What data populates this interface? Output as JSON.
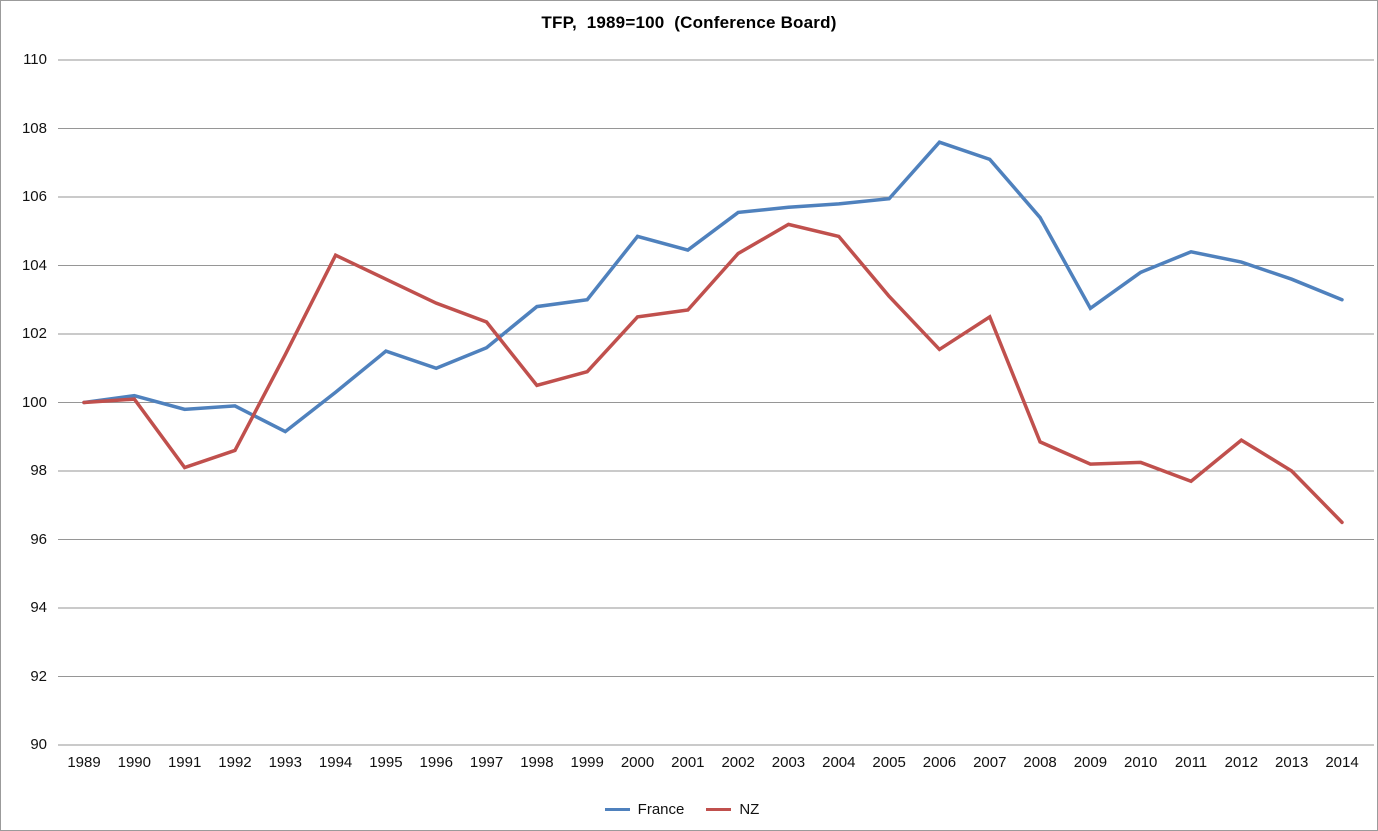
{
  "chart_data": {
    "type": "line",
    "title": "TFP,  1989=100  (Conference Board)",
    "xlabel": "",
    "ylabel": "",
    "ylim": [
      90,
      110
    ],
    "yticks": [
      90,
      92,
      94,
      96,
      98,
      100,
      102,
      104,
      106,
      108,
      110
    ],
    "grid": "horizontal",
    "gridline_color": "#969696",
    "legend_position": "bottom",
    "categories": [
      "1989",
      "1990",
      "1991",
      "1992",
      "1993",
      "1994",
      "1995",
      "1996",
      "1997",
      "1998",
      "1999",
      "2000",
      "2001",
      "2002",
      "2003",
      "2004",
      "2005",
      "2006",
      "2007",
      "2008",
      "2009",
      "2010",
      "2011",
      "2012",
      "2013",
      "2014"
    ],
    "series": [
      {
        "name": "France",
        "color": "#4F81BD",
        "values": [
          100.0,
          100.2,
          99.8,
          99.9,
          99.15,
          100.3,
          101.5,
          101.0,
          101.6,
          102.8,
          103.0,
          104.85,
          104.45,
          105.55,
          105.7,
          105.8,
          105.95,
          107.6,
          107.1,
          105.4,
          102.75,
          103.8,
          104.4,
          104.1,
          103.6,
          103.0
        ]
      },
      {
        "name": "NZ",
        "color": "#C0504D",
        "values": [
          100.0,
          100.1,
          98.1,
          98.6,
          101.4,
          104.3,
          103.6,
          102.9,
          102.35,
          100.5,
          100.9,
          102.5,
          102.7,
          104.35,
          105.2,
          104.85,
          103.1,
          101.55,
          102.5,
          98.85,
          98.2,
          98.25,
          97.7,
          98.9,
          98.0,
          96.5
        ]
      }
    ]
  }
}
